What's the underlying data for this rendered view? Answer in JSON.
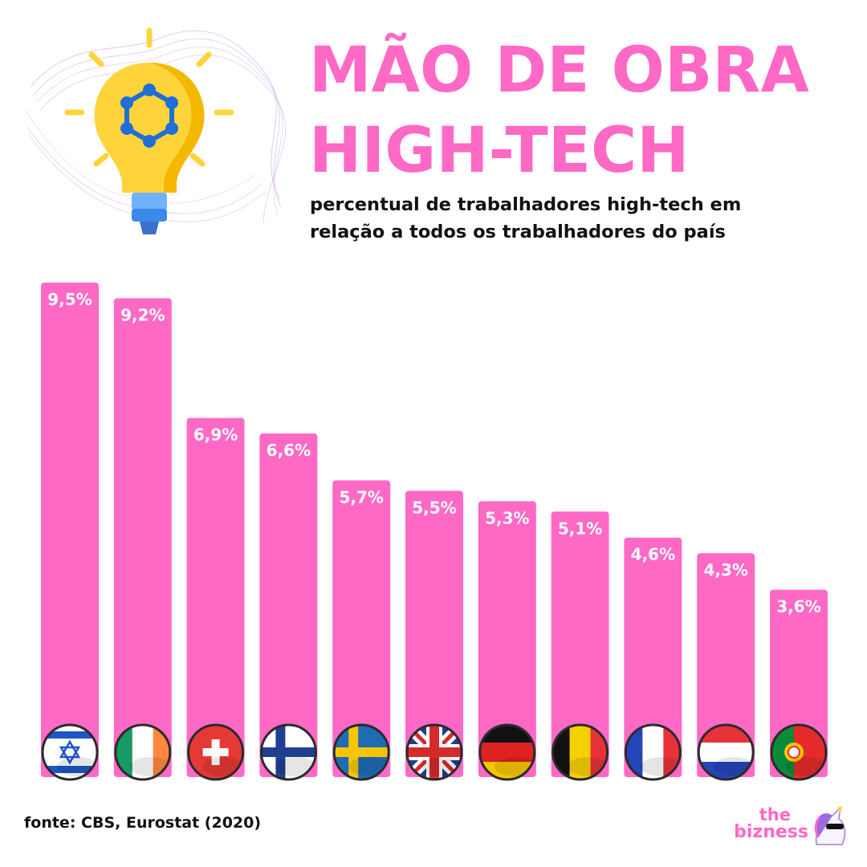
{
  "header": {
    "title_line1": "MÃO DE OBRA",
    "title_line2": "HIGH-TECH",
    "subtitle_line1": "percentual de trabalhadores high-tech em",
    "subtitle_line2": "relação a todos os trabalhadores do país"
  },
  "footer": {
    "source": "fonte: CBS, Eurostat (2020)",
    "brand_the": "the",
    "brand_name": "bizness"
  },
  "illustration": {
    "icon": "lightbulb-icon"
  },
  "colors": {
    "bar": "#ff69c6",
    "title": "#ff69c6",
    "label": "#ffffff",
    "text": "#111111"
  },
  "chart_data": {
    "type": "bar",
    "title": "MÃO DE OBRA HIGH-TECH",
    "subtitle": "percentual de trabalhadores high-tech em relação a todos os trabalhadores do país",
    "ylim": [
      0,
      9.5
    ],
    "categories": [
      "israel-flag",
      "ireland-flag",
      "switzerland-flag",
      "finland-flag",
      "sweden-flag",
      "united-kingdom-flag",
      "germany-flag",
      "belgium-flag",
      "france-flag",
      "netherlands-flag",
      "portugal-flag"
    ],
    "values": [
      9.5,
      9.2,
      6.9,
      6.6,
      5.7,
      5.5,
      5.3,
      5.1,
      4.6,
      4.3,
      3.6
    ],
    "labels": [
      "9,5%",
      "9,2%",
      "6,9%",
      "6,6%",
      "5,7%",
      "5,5%",
      "5,3%",
      "5,1%",
      "4,6%",
      "4,3%",
      "3,6%"
    ],
    "grid": false,
    "legend": "none"
  }
}
